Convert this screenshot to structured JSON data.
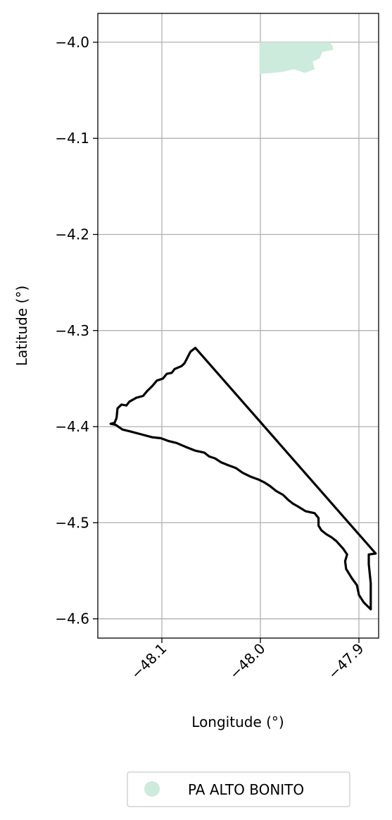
{
  "chart_data": {
    "type": "map",
    "xlabel": "Longitude (°)",
    "ylabel": "Latitude (°)",
    "xlim": [
      -48.165,
      -47.88
    ],
    "ylim": [
      -4.62,
      -3.97
    ],
    "grid": true,
    "x_ticks": [
      {
        "value": -48.1,
        "label": "−48.1"
      },
      {
        "value": -48.0,
        "label": "−48.0"
      },
      {
        "value": -47.9,
        "label": "−47.9"
      }
    ],
    "y_ticks": [
      {
        "value": -4.0,
        "label": "−4.0"
      },
      {
        "value": -4.1,
        "label": "−4.1"
      },
      {
        "value": -4.2,
        "label": "−4.2"
      },
      {
        "value": -4.3,
        "label": "−4.3"
      },
      {
        "value": -4.4,
        "label": "−4.4"
      },
      {
        "value": -4.5,
        "label": "−4.5"
      },
      {
        "value": -4.6,
        "label": "−4.6"
      }
    ],
    "legend": {
      "placement": "bottom-center",
      "entries": [
        {
          "label": "PA ALTO BONITO",
          "color": "#cdebdc",
          "marker": "circle"
        }
      ]
    },
    "settlement_area": {
      "name": "PA ALTO BONITO",
      "color": "#cdebdc",
      "coordinates": [
        [
          -48.001,
          -4.0
        ],
        [
          -47.93,
          -4.0
        ],
        [
          -47.927,
          -4.003
        ],
        [
          -47.926,
          -4.008
        ],
        [
          -47.937,
          -4.01
        ],
        [
          -47.94,
          -4.017
        ],
        [
          -47.947,
          -4.02
        ],
        [
          -47.945,
          -4.028
        ],
        [
          -47.955,
          -4.032
        ],
        [
          -47.966,
          -4.028
        ],
        [
          -47.978,
          -4.031
        ],
        [
          -48.001,
          -4.033
        ]
      ]
    },
    "boundary": {
      "color": "#000000",
      "coordinates": [
        [
          -48.152,
          -4.397
        ],
        [
          -48.148,
          -4.396
        ],
        [
          -48.146,
          -4.391
        ],
        [
          -48.145,
          -4.381
        ],
        [
          -48.141,
          -4.377
        ],
        [
          -48.136,
          -4.378
        ],
        [
          -48.133,
          -4.374
        ],
        [
          -48.126,
          -4.37
        ],
        [
          -48.119,
          -4.368
        ],
        [
          -48.115,
          -4.363
        ],
        [
          -48.11,
          -4.358
        ],
        [
          -48.105,
          -4.352
        ],
        [
          -48.099,
          -4.35
        ],
        [
          -48.095,
          -4.345
        ],
        [
          -48.09,
          -4.344
        ],
        [
          -48.087,
          -4.34
        ],
        [
          -48.08,
          -4.337
        ],
        [
          -48.077,
          -4.334
        ],
        [
          -48.074,
          -4.328
        ],
        [
          -48.071,
          -4.322
        ],
        [
          -48.066,
          -4.318
        ],
        [
          -47.883,
          -4.532
        ],
        [
          -47.89,
          -4.533
        ],
        [
          -47.89,
          -4.543
        ],
        [
          -47.888,
          -4.563
        ],
        [
          -47.888,
          -4.59
        ],
        [
          -47.895,
          -4.583
        ],
        [
          -47.9,
          -4.575
        ],
        [
          -47.902,
          -4.565
        ],
        [
          -47.907,
          -4.558
        ],
        [
          -47.91,
          -4.553
        ],
        [
          -47.913,
          -4.548
        ],
        [
          -47.914,
          -4.54
        ],
        [
          -47.912,
          -4.533
        ],
        [
          -47.916,
          -4.527
        ],
        [
          -47.923,
          -4.519
        ],
        [
          -47.928,
          -4.515
        ],
        [
          -47.933,
          -4.512
        ],
        [
          -47.938,
          -4.508
        ],
        [
          -47.941,
          -4.503
        ],
        [
          -47.941,
          -4.495
        ],
        [
          -47.945,
          -4.49
        ],
        [
          -47.954,
          -4.488
        ],
        [
          -47.962,
          -4.483
        ],
        [
          -47.967,
          -4.48
        ],
        [
          -47.972,
          -4.476
        ],
        [
          -47.977,
          -4.471
        ],
        [
          -47.984,
          -4.467
        ],
        [
          -47.99,
          -4.462
        ],
        [
          -47.996,
          -4.458
        ],
        [
          -48.002,
          -4.455
        ],
        [
          -48.01,
          -4.452
        ],
        [
          -48.018,
          -4.448
        ],
        [
          -48.025,
          -4.443
        ],
        [
          -48.033,
          -4.44
        ],
        [
          -48.04,
          -4.437
        ],
        [
          -48.046,
          -4.433
        ],
        [
          -48.052,
          -4.431
        ],
        [
          -48.057,
          -4.427
        ],
        [
          -48.066,
          -4.425
        ],
        [
          -48.076,
          -4.421
        ],
        [
          -48.085,
          -4.417
        ],
        [
          -48.093,
          -4.415
        ],
        [
          -48.101,
          -4.412
        ],
        [
          -48.11,
          -4.411
        ],
        [
          -48.121,
          -4.408
        ],
        [
          -48.132,
          -4.405
        ],
        [
          -48.14,
          -4.403
        ],
        [
          -48.147,
          -4.398
        ],
        [
          -48.152,
          -4.397
        ]
      ]
    }
  }
}
